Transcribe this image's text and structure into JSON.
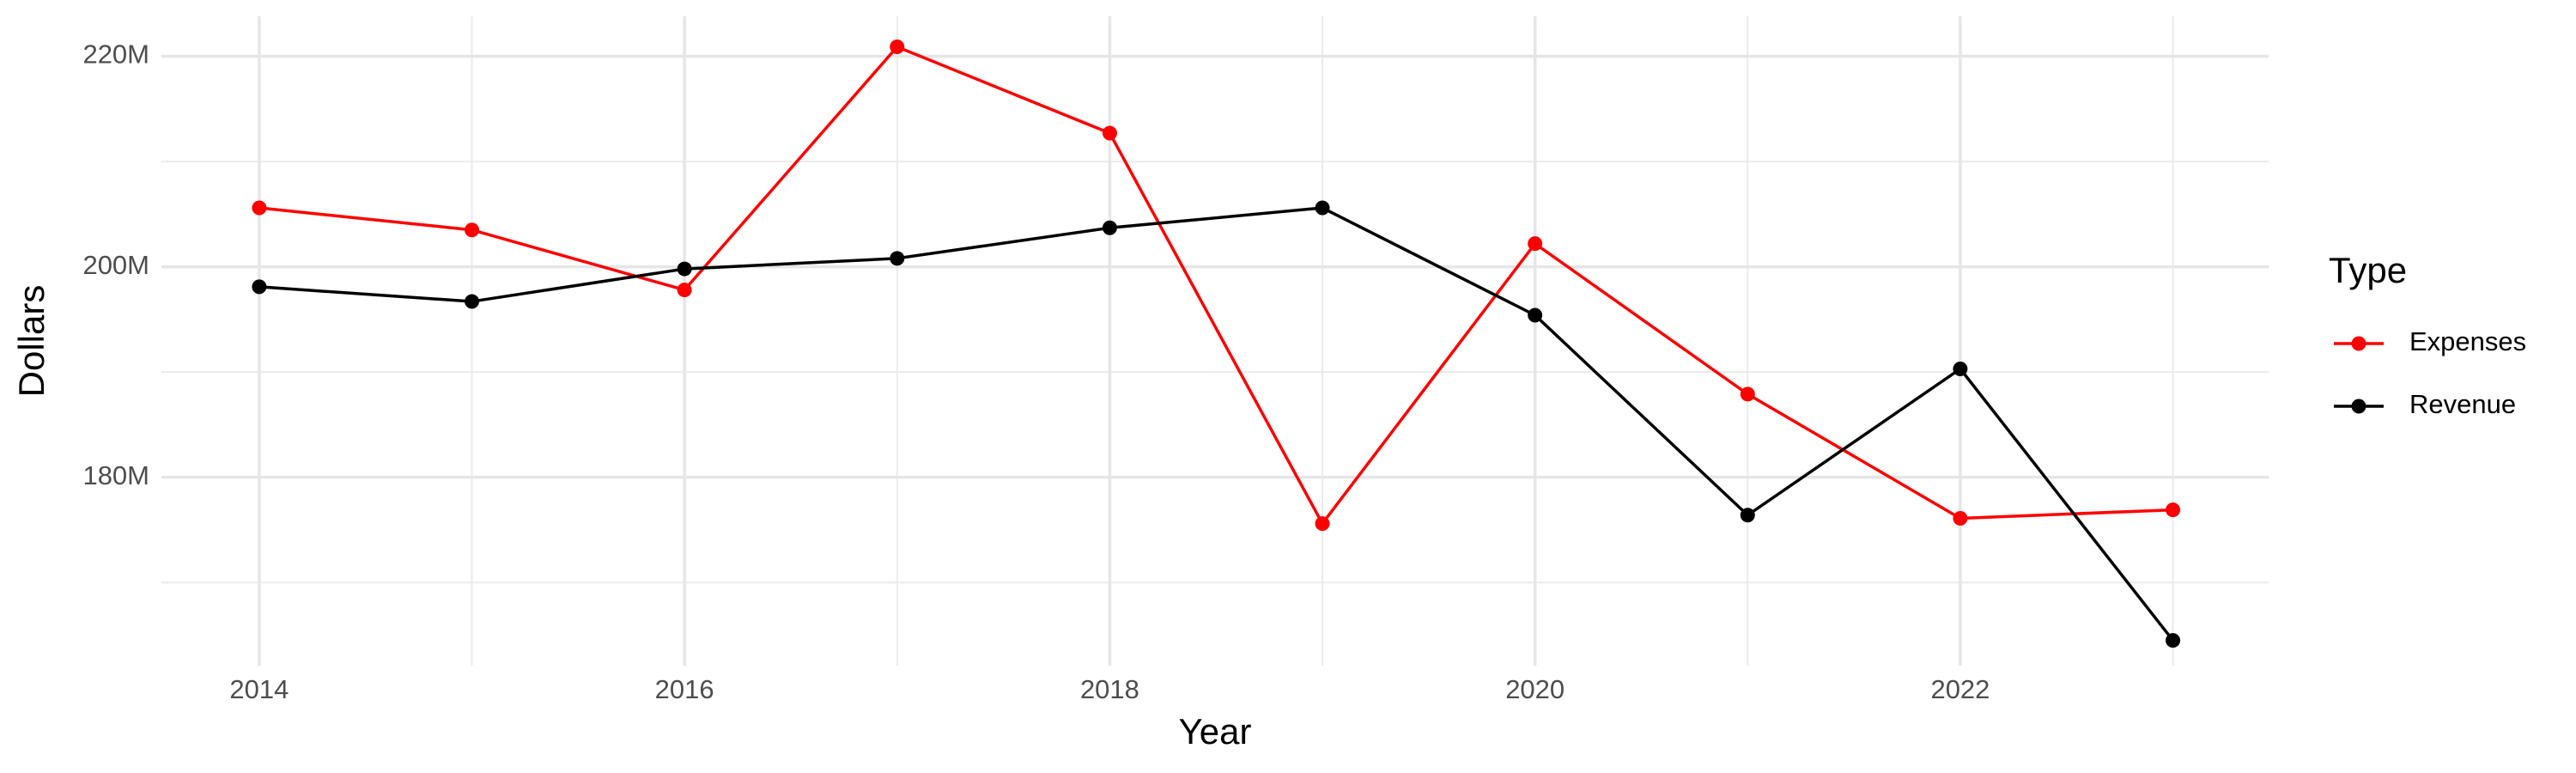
{
  "chart_data": {
    "type": "line",
    "x_label": "Year",
    "y_label": "Dollars",
    "legend_title": "Type",
    "legend": "right",
    "x": [
      2014,
      2015,
      2016,
      2017,
      2018,
      2019,
      2020,
      2021,
      2022,
      2023
    ],
    "series": [
      {
        "name": "Expenses",
        "color": "#ff0000",
        "values": [
          205600000,
          203500000,
          197800000,
          220900000,
          212700000,
          175600000,
          202200000,
          187900000,
          176100000,
          176900000
        ]
      },
      {
        "name": "Revenue",
        "color": "#000000",
        "values": [
          198100000,
          196700000,
          199800000,
          200800000,
          203700000,
          205600000,
          195400000,
          176400000,
          190300000,
          164500000
        ]
      }
    ],
    "xlim": [
      2013.54,
      2023.45
    ],
    "xticks": [
      2014,
      2016,
      2018,
      2020,
      2022
    ],
    "ylim": [
      162100000,
      223800000
    ],
    "yticks": [
      {
        "value": 180000000,
        "label": "180M"
      },
      {
        "value": 200000000,
        "label": "200M"
      },
      {
        "value": 220000000,
        "label": "220M"
      }
    ],
    "grid": true
  }
}
